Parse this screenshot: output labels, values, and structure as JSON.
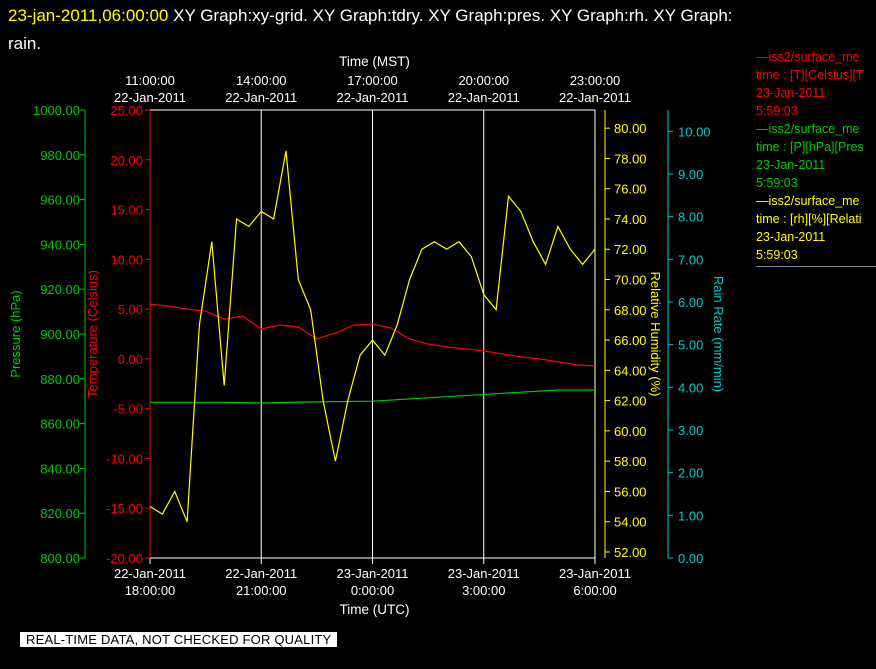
{
  "header": {
    "timestamp": "23-jan-2011,06:00:00",
    "graphs_line1": "XY Graph:xy-grid.  XY Graph:tdry.  XY Graph:pres.  XY Graph:rh.  XY Graph:",
    "graphs_line2": "rain."
  },
  "legend": [
    {
      "name": "iss2/surface_me",
      "line1": "time : [T][Celsius][T",
      "date": "23-Jan-2011",
      "time": "5:59:03",
      "color": "#ff0000"
    },
    {
      "name": "iss2/surface_me",
      "line1": "time : [P][hPa][Pres",
      "date": "23-Jan-2011",
      "time": "5:59:03",
      "color": "#00cc00"
    },
    {
      "name": "iss2/surface_me",
      "line1": "time : [rh][%][Relati",
      "date": "23-Jan-2011",
      "time": "5:59:03",
      "color": "#ffff00"
    }
  ],
  "notice": "REAL-TIME DATA, NOT CHECKED FOR QUALITY",
  "colors": {
    "temperature": "#ff0000",
    "pressure": "#00cc00",
    "humidity": "#ffff00",
    "rain": "#00cccc",
    "grid": "#ffffff"
  },
  "chart_data": {
    "type": "line",
    "top_axis": {
      "label": "Time (MST)",
      "ticks": [
        {
          "x": "2011-01-22T18:00",
          "time": "11:00:00",
          "date": "22-Jan-2011"
        },
        {
          "x": "2011-01-22T21:00",
          "time": "14:00:00",
          "date": "22-Jan-2011"
        },
        {
          "x": "2011-01-23T00:00",
          "time": "17:00:00",
          "date": "22-Jan-2011"
        },
        {
          "x": "2011-01-23T03:00",
          "time": "20:00:00",
          "date": "22-Jan-2011"
        },
        {
          "x": "2011-01-23T06:00",
          "time": "23:00:00",
          "date": "22-Jan-2011"
        }
      ]
    },
    "bottom_axis": {
      "label": "Time (UTC)",
      "range": [
        "2011-01-22T18:00",
        "2011-01-23T06:00"
      ],
      "ticks": [
        {
          "x": "2011-01-22T18:00",
          "date": "22-Jan-2011",
          "time": "18:00:00"
        },
        {
          "x": "2011-01-22T21:00",
          "date": "22-Jan-2011",
          "time": "21:00:00"
        },
        {
          "x": "2011-01-23T00:00",
          "date": "23-Jan-2011",
          "time": "0:00:00"
        },
        {
          "x": "2011-01-23T03:00",
          "date": "23-Jan-2011",
          "time": "3:00:00"
        },
        {
          "x": "2011-01-23T06:00",
          "date": "23-Jan-2011",
          "time": "6:00:00"
        }
      ]
    },
    "grid": true,
    "axes": {
      "pressure": {
        "label": "Pressure (hPa)",
        "range": [
          800,
          1000
        ],
        "ticks": [
          "800.00",
          "820.00",
          "840.00",
          "860.00",
          "880.00",
          "900.00",
          "920.00",
          "940.00",
          "960.00",
          "980.00",
          "1000.00"
        ]
      },
      "temperature": {
        "label": "Temperature (Celsius)",
        "range": [
          -20,
          25
        ],
        "ticks": [
          "-20.00",
          "-15.00",
          "-10.00",
          "-5.00",
          "0.00",
          "5.00",
          "10.00",
          "15.00",
          "20.00",
          "25.00"
        ]
      },
      "humidity": {
        "label": "Relative Humidity (%)",
        "range": [
          51.6,
          81.2
        ],
        "ticks": [
          "52.00",
          "54.00",
          "56.00",
          "58.00",
          "60.00",
          "62.00",
          "64.00",
          "66.00",
          "68.00",
          "70.00",
          "72.00",
          "74.00",
          "76.00",
          "78.00",
          "80.00"
        ]
      },
      "rain": {
        "label": "Rain Rate (mm/min)",
        "range": [
          0,
          10.5
        ],
        "ticks": [
          "0.00",
          "1.00",
          "2.00",
          "3.00",
          "4.00",
          "5.00",
          "6.00",
          "7.00",
          "8.00",
          "9.00",
          "10.00"
        ]
      }
    },
    "series": [
      {
        "axis": "temperature",
        "x": [
          "2011-01-22T18:00",
          "2011-01-22T18:30",
          "2011-01-22T19:00",
          "2011-01-22T19:30",
          "2011-01-22T20:00",
          "2011-01-22T20:30",
          "2011-01-22T21:00",
          "2011-01-22T21:30",
          "2011-01-22T22:00",
          "2011-01-22T22:30",
          "2011-01-22T23:00",
          "2011-01-22T23:30",
          "2011-01-23T00:00",
          "2011-01-23T00:30",
          "2011-01-23T01:00",
          "2011-01-23T01:30",
          "2011-01-23T02:00",
          "2011-01-23T02:30",
          "2011-01-23T03:00",
          "2011-01-23T03:30",
          "2011-01-23T04:00",
          "2011-01-23T04:30",
          "2011-01-23T05:00",
          "2011-01-23T05:30",
          "2011-01-23T06:00"
        ],
        "values": [
          5.5,
          5.3,
          5.0,
          4.8,
          4.0,
          4.3,
          3.0,
          3.4,
          3.2,
          2.0,
          2.6,
          3.4,
          3.5,
          3.1,
          2.0,
          1.5,
          1.2,
          1.0,
          0.8,
          0.5,
          0.2,
          0.0,
          -0.3,
          -0.6,
          -0.7
        ]
      },
      {
        "axis": "pressure",
        "x": [
          "2011-01-22T18:00",
          "2011-01-22T20:00",
          "2011-01-22T21:00",
          "2011-01-22T22:00",
          "2011-01-23T00:00",
          "2011-01-23T02:00",
          "2011-01-23T04:00",
          "2011-01-23T05:00",
          "2011-01-23T06:00"
        ],
        "values": [
          869.5,
          869.5,
          869.2,
          869.6,
          870.0,
          872.0,
          874.0,
          875.0,
          875.0
        ]
      },
      {
        "axis": "humidity",
        "x": [
          "2011-01-22T18:00",
          "2011-01-22T18:20",
          "2011-01-22T18:40",
          "2011-01-22T19:00",
          "2011-01-22T19:20",
          "2011-01-22T19:40",
          "2011-01-22T20:00",
          "2011-01-22T20:20",
          "2011-01-22T20:40",
          "2011-01-22T21:00",
          "2011-01-22T21:20",
          "2011-01-22T21:40",
          "2011-01-22T22:00",
          "2011-01-22T22:20",
          "2011-01-22T22:40",
          "2011-01-22T23:00",
          "2011-01-22T23:20",
          "2011-01-22T23:40",
          "2011-01-23T00:00",
          "2011-01-23T00:20",
          "2011-01-23T00:40",
          "2011-01-23T01:00",
          "2011-01-23T01:20",
          "2011-01-23T01:40",
          "2011-01-23T02:00",
          "2011-01-23T02:20",
          "2011-01-23T02:40",
          "2011-01-23T03:00",
          "2011-01-23T03:20",
          "2011-01-23T03:40",
          "2011-01-23T04:00",
          "2011-01-23T04:20",
          "2011-01-23T04:40",
          "2011-01-23T05:00",
          "2011-01-23T05:20",
          "2011-01-23T05:40",
          "2011-01-23T06:00"
        ],
        "values": [
          55.0,
          54.5,
          56.0,
          54.0,
          67.0,
          72.5,
          63.0,
          74.0,
          73.5,
          74.5,
          74.0,
          78.5,
          70.0,
          68.0,
          62.0,
          58.0,
          62.0,
          65.0,
          66.0,
          65.0,
          67.0,
          70.0,
          72.0,
          72.5,
          72.0,
          72.5,
          71.5,
          69.0,
          68.0,
          75.5,
          74.5,
          72.5,
          71.0,
          73.5,
          72.0,
          71.0,
          72.0
        ]
      }
    ]
  }
}
